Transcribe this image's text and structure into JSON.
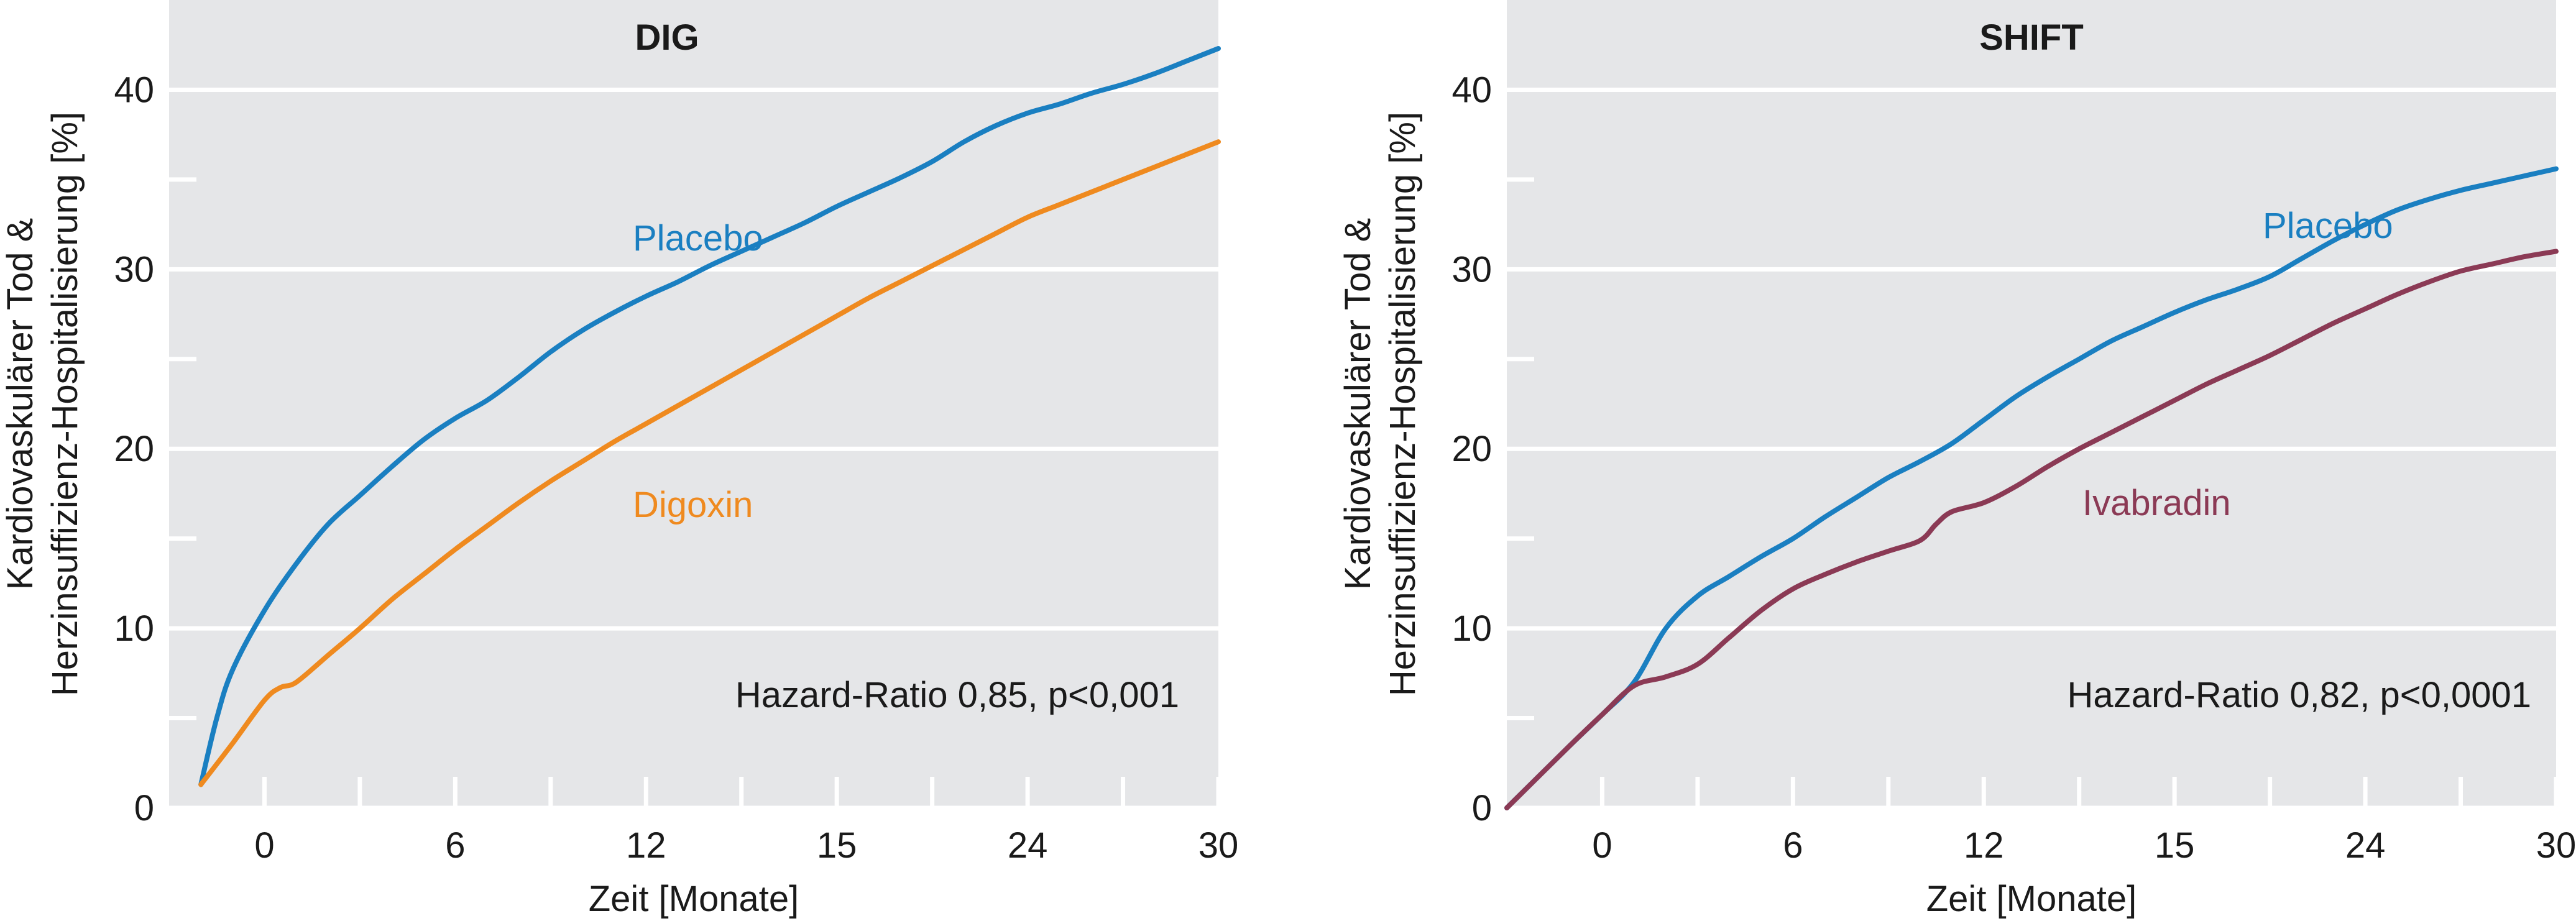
{
  "chart_data": [
    {
      "type": "line",
      "title": "DIG",
      "xlabel": "Zeit [Monate]",
      "ylabel": [
        "Kardiovaskulärer Tod &",
        "Herzinsuffizienz-Hospitalisierung [%]"
      ],
      "x_tick_labels": [
        "0",
        "6",
        "12",
        "15",
        "24",
        "30"
      ],
      "y_tick_labels": [
        "0",
        "10",
        "20",
        "30",
        "40"
      ],
      "xlim": [
        -3,
        30
      ],
      "ylim": [
        0,
        45
      ],
      "grid": true,
      "annotation": "Hazard-Ratio 0,85, p<0,001",
      "series": [
        {
          "name": "Placebo",
          "color": "#1a7fc1",
          "x": [
            -2,
            -1.5,
            -1,
            0,
            1,
            2,
            3,
            4,
            5,
            6,
            7,
            8,
            9,
            10,
            11,
            12,
            13,
            14,
            15,
            16,
            17,
            18,
            19,
            20,
            21,
            22,
            23,
            24,
            25,
            26,
            27,
            28,
            29,
            30
          ],
          "y": [
            1.3,
            5.0,
            7.7,
            11.0,
            13.6,
            15.8,
            17.4,
            19.0,
            20.5,
            21.7,
            22.7,
            24.0,
            25.4,
            26.6,
            27.6,
            28.5,
            29.3,
            30.2,
            31.0,
            31.8,
            32.6,
            33.5,
            34.3,
            35.1,
            36.0,
            37.1,
            38.0,
            38.7,
            39.2,
            39.8,
            40.3,
            40.9,
            41.6,
            42.3
          ]
        },
        {
          "name": "Digoxin",
          "color": "#ef8a1f",
          "x": [
            -2,
            -1,
            0,
            0.5,
            1,
            2,
            3,
            4,
            5,
            6,
            7,
            8,
            9,
            10,
            11,
            12,
            13,
            14,
            15,
            16,
            17,
            18,
            19,
            20,
            21,
            22,
            23,
            24,
            25,
            26,
            27,
            28,
            29,
            30
          ],
          "y": [
            1.3,
            3.6,
            6.0,
            6.7,
            7.0,
            8.5,
            10.0,
            11.6,
            13.0,
            14.4,
            15.7,
            17.0,
            18.2,
            19.3,
            20.4,
            21.4,
            22.4,
            23.4,
            24.4,
            25.4,
            26.4,
            27.4,
            28.4,
            29.3,
            30.2,
            31.1,
            32.0,
            32.9,
            33.6,
            34.3,
            35.0,
            35.7,
            36.4,
            37.1
          ]
        }
      ],
      "series_label_text": [
        {
          "text": "Placebo",
          "color": "#1a7fc1"
        },
        {
          "text": "Digoxin",
          "color": "#ef8a1f"
        }
      ]
    },
    {
      "type": "line",
      "title": "SHIFT",
      "xlabel": "Zeit [Monate]",
      "ylabel": [
        "Kardiovaskulärer Tod &",
        "Herzinsuffizienz-Hospitalisierung [%]"
      ],
      "x_tick_labels": [
        "0",
        "6",
        "12",
        "15",
        "24",
        "30"
      ],
      "y_tick_labels": [
        "0",
        "10",
        "20",
        "30",
        "40"
      ],
      "xlim": [
        -3,
        30
      ],
      "ylim": [
        0,
        45
      ],
      "grid": true,
      "annotation": "Hazard-Ratio 0,82, p<0,0001",
      "series": [
        {
          "name": "Placebo",
          "color": "#1a7fc1",
          "x": [
            -3,
            -1,
            0,
            1,
            2,
            3,
            4,
            5,
            6,
            7,
            8,
            9,
            10,
            11,
            12,
            13,
            14,
            15,
            16,
            17,
            18,
            19,
            20,
            21,
            22,
            23,
            24,
            25,
            26,
            27,
            28,
            29,
            30
          ],
          "y": [
            0,
            3.5,
            5.2,
            7.0,
            10.0,
            11.8,
            12.9,
            14.0,
            15.0,
            16.2,
            17.3,
            18.4,
            19.3,
            20.3,
            21.6,
            22.9,
            24.0,
            25.0,
            26.0,
            26.8,
            27.6,
            28.3,
            28.9,
            29.6,
            30.6,
            31.6,
            32.5,
            33.3,
            33.9,
            34.4,
            34.8,
            35.2,
            35.6
          ]
        },
        {
          "name": "Ivabradin",
          "color": "#8b3a55",
          "x": [
            -3,
            -1,
            0,
            1,
            2,
            3,
            4,
            5,
            6,
            7,
            8,
            9,
            10,
            10.5,
            11,
            12,
            13,
            14,
            15,
            16,
            17,
            18,
            19,
            20,
            21,
            22,
            23,
            24,
            25,
            26,
            27,
            28,
            29,
            30
          ],
          "y": [
            0,
            3.5,
            5.2,
            6.8,
            7.3,
            8.0,
            9.5,
            11.0,
            12.2,
            13.0,
            13.7,
            14.3,
            14.9,
            15.8,
            16.5,
            17.0,
            17.9,
            19.0,
            20.0,
            20.9,
            21.8,
            22.7,
            23.6,
            24.4,
            25.2,
            26.1,
            27.0,
            27.8,
            28.6,
            29.3,
            29.9,
            30.3,
            30.7,
            31.0
          ]
        }
      ],
      "series_label_text": [
        {
          "text": "Placebo",
          "color": "#1a7fc1"
        },
        {
          "text": "Ivabradin",
          "color": "#8b3a55"
        }
      ]
    }
  ]
}
